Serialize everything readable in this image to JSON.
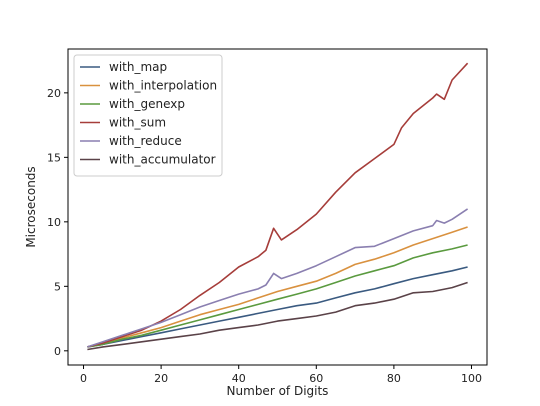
{
  "chart_data": {
    "type": "line",
    "title": "",
    "xlabel": "Number of Digits",
    "ylabel": "Microseconds",
    "xlim": [
      -4,
      104
    ],
    "ylim": [
      -1.1,
      23.4
    ],
    "xticks": [
      0,
      20,
      40,
      60,
      80,
      100
    ],
    "yticks": [
      0,
      5,
      10,
      15,
      20
    ],
    "grid": false,
    "legend_position": "top-left",
    "series": [
      {
        "name": "with_map",
        "color": "#3a5a80",
        "x": [
          1,
          5,
          10,
          15,
          20,
          25,
          30,
          35,
          40,
          45,
          50,
          55,
          60,
          65,
          70,
          75,
          80,
          85,
          90,
          95,
          99
        ],
        "y": [
          0.3,
          0.5,
          0.8,
          1.1,
          1.4,
          1.7,
          2.0,
          2.3,
          2.6,
          2.9,
          3.2,
          3.5,
          3.7,
          4.1,
          4.5,
          4.8,
          5.2,
          5.6,
          5.9,
          6.2,
          6.5
        ]
      },
      {
        "name": "with_interpolation",
        "color": "#d9913f",
        "x": [
          1,
          5,
          10,
          15,
          20,
          25,
          30,
          35,
          40,
          45,
          50,
          55,
          60,
          65,
          70,
          75,
          80,
          85,
          90,
          95,
          99
        ],
        "y": [
          0.3,
          0.6,
          1.0,
          1.4,
          1.8,
          2.3,
          2.8,
          3.2,
          3.6,
          4.1,
          4.6,
          5.0,
          5.4,
          6.0,
          6.7,
          7.1,
          7.6,
          8.2,
          8.7,
          9.2,
          9.6
        ]
      },
      {
        "name": "with_genexp",
        "color": "#5a9a3f",
        "x": [
          1,
          5,
          10,
          15,
          20,
          25,
          30,
          35,
          40,
          45,
          50,
          55,
          60,
          65,
          70,
          75,
          80,
          85,
          90,
          95,
          99
        ],
        "y": [
          0.3,
          0.5,
          0.9,
          1.2,
          1.6,
          2.0,
          2.4,
          2.8,
          3.2,
          3.6,
          4.0,
          4.4,
          4.8,
          5.3,
          5.8,
          6.2,
          6.6,
          7.2,
          7.6,
          7.9,
          8.2
        ]
      },
      {
        "name": "with_sum",
        "color": "#a63d3a",
        "x": [
          1,
          5,
          10,
          15,
          20,
          25,
          30,
          35,
          40,
          45,
          47,
          49,
          51,
          55,
          60,
          65,
          70,
          75,
          80,
          82,
          85,
          90,
          91,
          93,
          95,
          99
        ],
        "y": [
          0.3,
          0.6,
          1.1,
          1.6,
          2.3,
          3.2,
          4.3,
          5.3,
          6.5,
          7.3,
          7.8,
          9.5,
          8.6,
          9.4,
          10.6,
          12.3,
          13.8,
          14.9,
          16.0,
          17.3,
          18.4,
          19.6,
          19.9,
          19.5,
          21.0,
          22.3
        ]
      },
      {
        "name": "with_reduce",
        "color": "#8a7fb0",
        "x": [
          1,
          5,
          10,
          15,
          20,
          25,
          30,
          35,
          40,
          45,
          47,
          49,
          51,
          55,
          60,
          65,
          70,
          75,
          80,
          85,
          90,
          91,
          93,
          95,
          99
        ],
        "y": [
          0.3,
          0.7,
          1.2,
          1.7,
          2.2,
          2.8,
          3.4,
          3.9,
          4.4,
          4.8,
          5.1,
          6.0,
          5.6,
          6.0,
          6.6,
          7.3,
          8.0,
          8.1,
          8.7,
          9.3,
          9.7,
          10.1,
          9.9,
          10.2,
          11.0
        ]
      },
      {
        "name": "with_accumulator",
        "color": "#5a4248",
        "x": [
          1,
          5,
          10,
          15,
          20,
          25,
          30,
          35,
          40,
          45,
          50,
          55,
          60,
          65,
          70,
          75,
          80,
          85,
          90,
          95,
          99
        ],
        "y": [
          0.1,
          0.3,
          0.5,
          0.7,
          0.9,
          1.1,
          1.3,
          1.6,
          1.8,
          2.0,
          2.3,
          2.5,
          2.7,
          3.0,
          3.5,
          3.7,
          4.0,
          4.5,
          4.6,
          4.9,
          5.3
        ]
      }
    ]
  }
}
